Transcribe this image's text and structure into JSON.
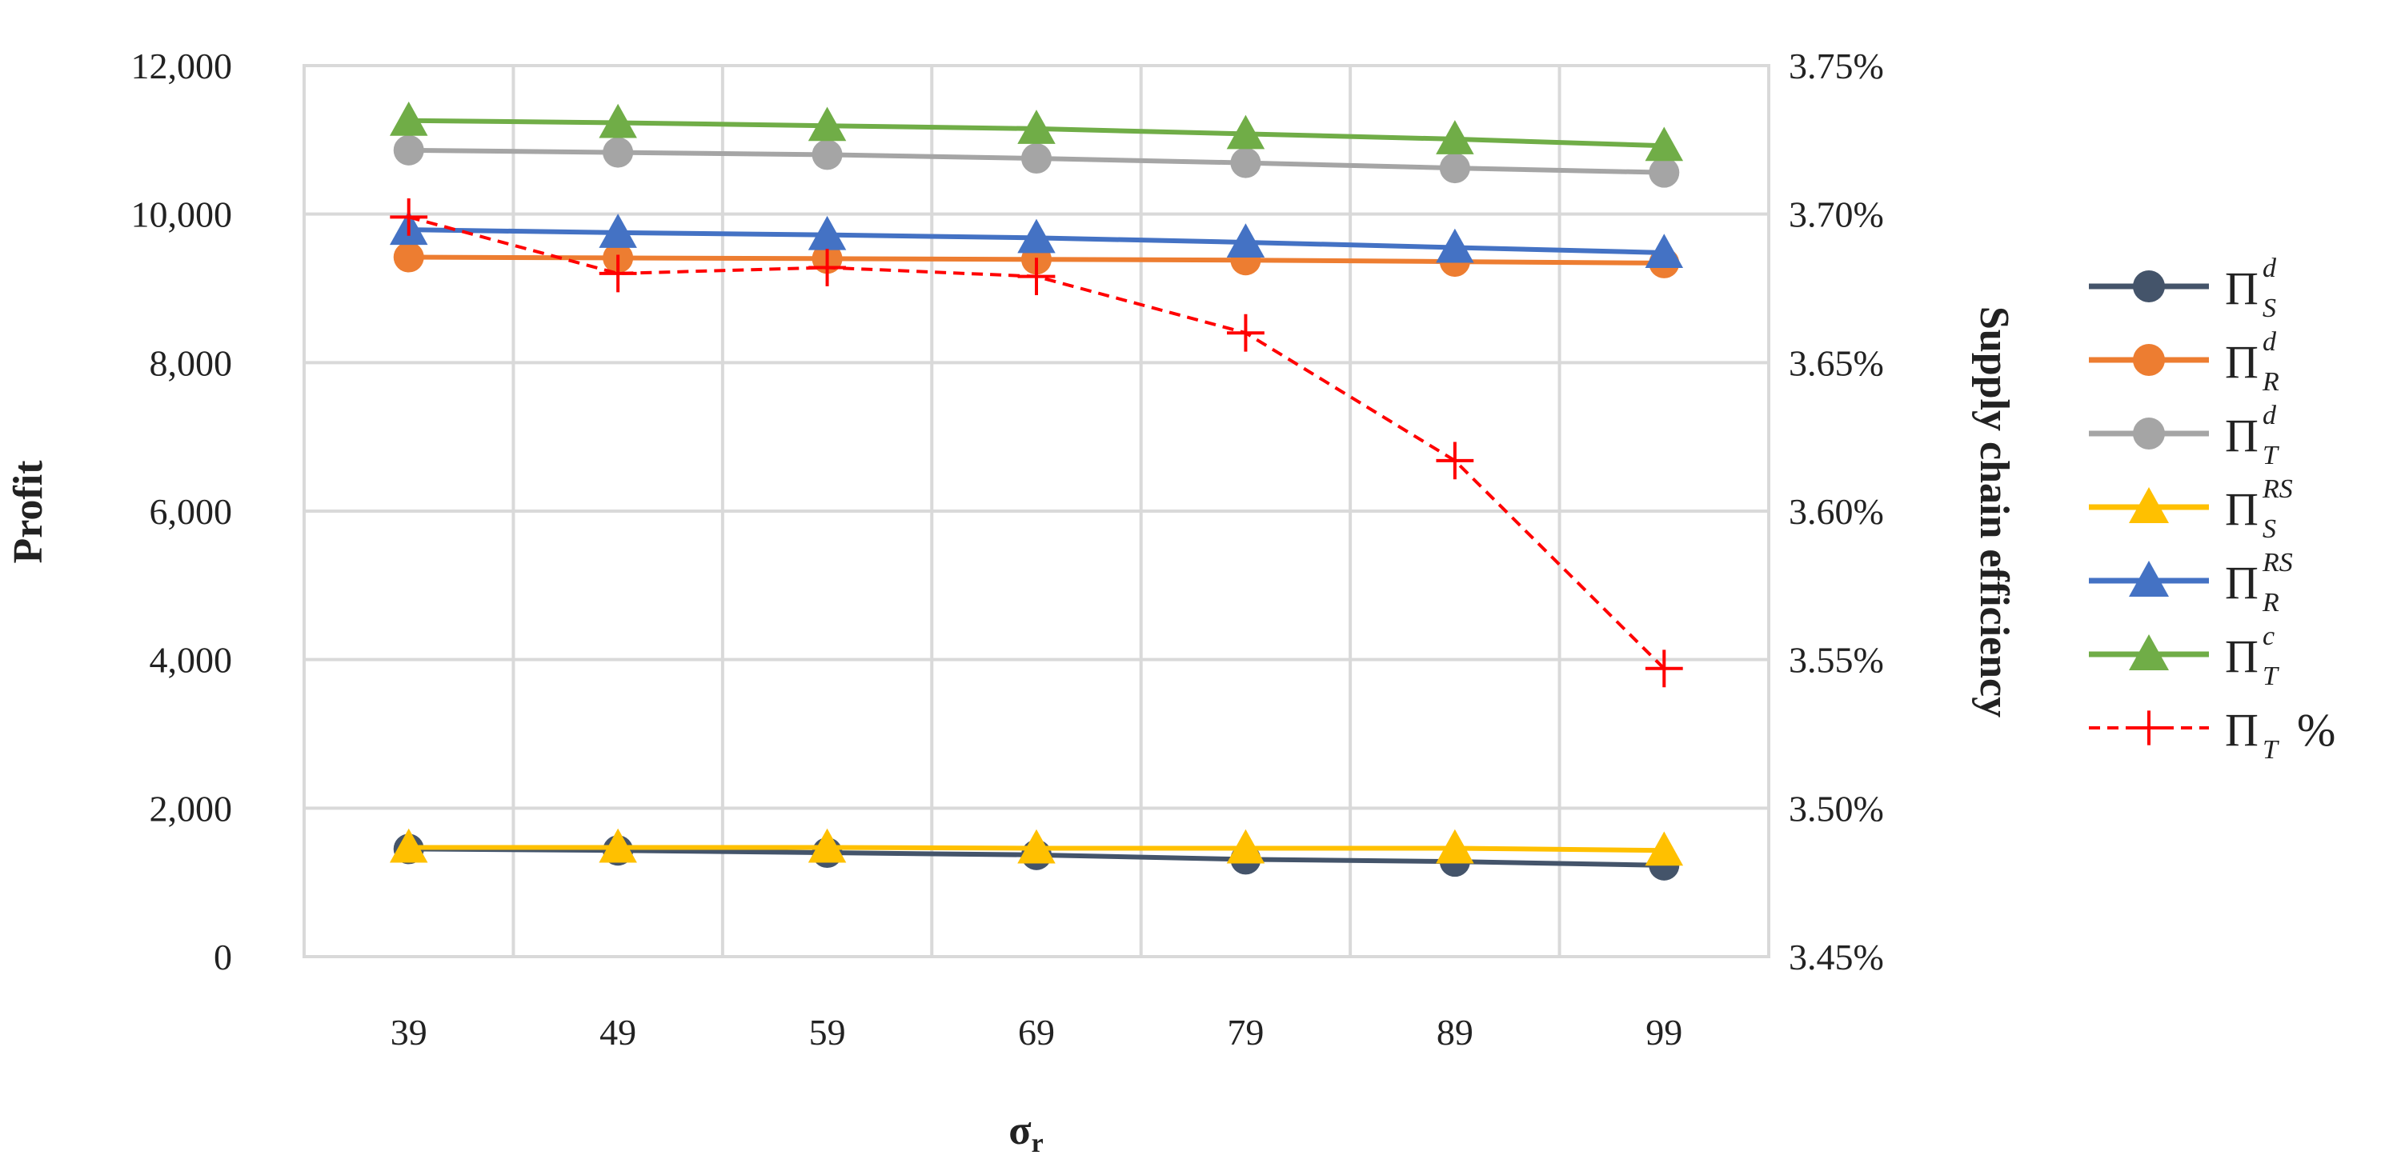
{
  "chart_data": {
    "type": "line",
    "title": "",
    "xlabel": {
      "main": "σ",
      "sub": "r"
    },
    "ylabel": "Profit",
    "y2label": "Supply chain efficiency",
    "categories": [
      "39",
      "49",
      "59",
      "69",
      "79",
      "89",
      "99"
    ],
    "ylim": [
      0,
      12000
    ],
    "y_ticks": [
      0,
      2000,
      4000,
      6000,
      8000,
      10000,
      12000
    ],
    "y_tick_labels": [
      "0",
      "2,000",
      "4,000",
      "6,000",
      "8,000",
      "10,000",
      "12,000"
    ],
    "y2lim": [
      3.45,
      3.75
    ],
    "y2_tick_labels": [
      "3.45%",
      "3.50%",
      "3.55%",
      "3.60%",
      "3.65%",
      "3.70%",
      "3.75%"
    ],
    "grid": true,
    "legend_position": "right",
    "series": [
      {
        "name": "Π_S^d",
        "symbol": "Π",
        "sub": "S",
        "sup": "d",
        "suffix": "",
        "axis": "left",
        "color": "#44546a",
        "marker": "circle",
        "dash": false,
        "values": [
          1450,
          1430,
          1400,
          1370,
          1310,
          1280,
          1230
        ]
      },
      {
        "name": "Π_R^d",
        "symbol": "Π",
        "sub": "R",
        "sup": "d",
        "suffix": "",
        "axis": "left",
        "color": "#ed7d31",
        "marker": "circle",
        "dash": false,
        "values": [
          9420,
          9410,
          9400,
          9390,
          9380,
          9360,
          9340
        ]
      },
      {
        "name": "Π_T^d",
        "symbol": "Π",
        "sub": "T",
        "sup": "d",
        "suffix": "",
        "axis": "left",
        "color": "#a5a5a5",
        "marker": "circle",
        "dash": false,
        "values": [
          10860,
          10830,
          10800,
          10750,
          10690,
          10620,
          10560
        ]
      },
      {
        "name": "Π_S^RS",
        "symbol": "Π",
        "sub": "S",
        "sup": "RS",
        "suffix": "",
        "axis": "left",
        "color": "#ffc000",
        "marker": "triangle",
        "dash": false,
        "values": [
          1470,
          1470,
          1470,
          1460,
          1460,
          1460,
          1430
        ]
      },
      {
        "name": "Π_R^RS",
        "symbol": "Π",
        "sub": "R",
        "sup": "RS",
        "suffix": "",
        "axis": "left",
        "color": "#4472c4",
        "marker": "triangle",
        "dash": false,
        "values": [
          9790,
          9750,
          9720,
          9680,
          9620,
          9550,
          9480
        ]
      },
      {
        "name": "Π_T^c",
        "symbol": "Π",
        "sub": "T",
        "sup": "c",
        "suffix": "",
        "axis": "left",
        "color": "#70ad47",
        "marker": "triangle",
        "dash": false,
        "values": [
          11260,
          11230,
          11190,
          11150,
          11080,
          11010,
          10920
        ]
      },
      {
        "name": "Π_T %",
        "symbol": "Π",
        "sub": "T",
        "sup": "",
        "suffix": "%",
        "axis": "right",
        "color": "#ff0000",
        "marker": "plus",
        "dash": true,
        "values": [
          3.699,
          3.68,
          3.682,
          3.679,
          3.66,
          3.617,
          3.547
        ]
      }
    ]
  }
}
